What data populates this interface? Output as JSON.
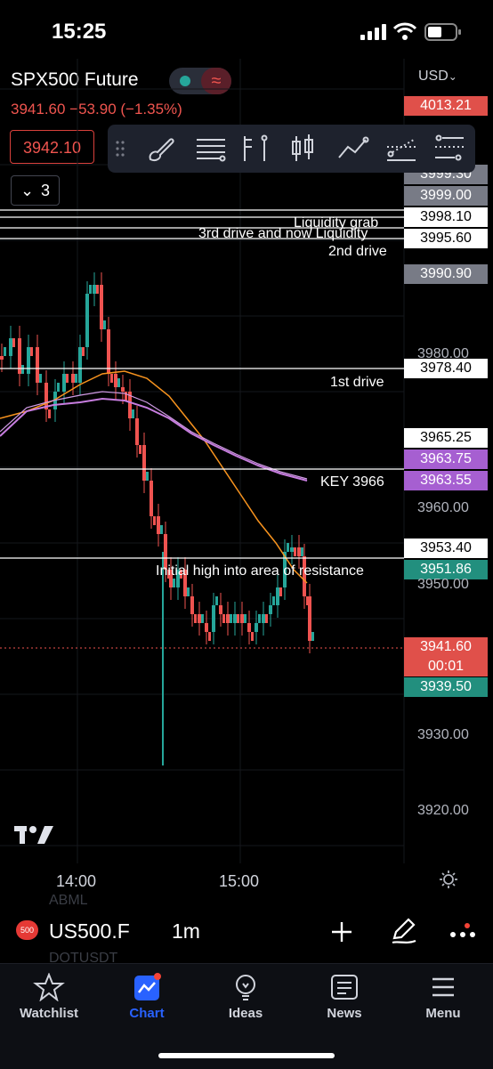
{
  "status_bar": {
    "time": "15:25"
  },
  "header": {
    "symbol": "SPX500 Future",
    "quote": "3941.60  −53.90 (−1.35%)",
    "currency": "USD",
    "current_price_box": "3942.10",
    "indicator_count": "3"
  },
  "toolbar": {
    "tools": [
      "grip-icon",
      "brush-icon",
      "lines-icon",
      "fib-icon",
      "candles-icon",
      "pattern-icon",
      "forecast-icon",
      "measure-icon"
    ]
  },
  "price_axis": {
    "labels": [
      {
        "value": "4013.21",
        "style": "red"
      },
      {
        "value": "3999.30",
        "style": "grey"
      },
      {
        "value": "3999.00",
        "style": "grey"
      },
      {
        "value": "3998.10",
        "style": "white"
      },
      {
        "value": "3995.60",
        "style": "white"
      },
      {
        "value": "3990.90",
        "style": "grey"
      },
      {
        "value": "3978.40",
        "style": "white"
      },
      {
        "value": "3965.25",
        "style": "white"
      },
      {
        "value": "3963.75",
        "style": "purple"
      },
      {
        "value": "3963.55",
        "style": "purple"
      },
      {
        "value": "3953.40",
        "style": "white"
      },
      {
        "value": "3951.86",
        "style": "teal"
      },
      {
        "value": "3941.60",
        "style": "red"
      },
      {
        "value": "00:01",
        "style": "red"
      },
      {
        "value": "3939.50",
        "style": "teal"
      }
    ],
    "ticks": [
      "3980.00",
      "3960.00",
      "3950.00",
      "3930.00",
      "3920.00"
    ]
  },
  "annotations": {
    "liquidity_grab": "Liquidity grab",
    "third_drive": "3rd drive and now Liquidity",
    "second_drive": "2nd drive",
    "first_drive": "1st drive",
    "key": "KEY 3966",
    "initial_high": "Initial high into area of resistance"
  },
  "time_axis": {
    "t1": "14:00",
    "t2": "15:00"
  },
  "symbol_bar": {
    "badge": "500",
    "symbol": "US500.F",
    "timeframe": "1m",
    "ghost_top": "ABML",
    "ghost_bottom": "DOTUSDT"
  },
  "tabs": [
    {
      "label": "Watchlist",
      "icon": "star-icon"
    },
    {
      "label": "Chart",
      "icon": "chart-icon"
    },
    {
      "label": "Ideas",
      "icon": "lightbulb-icon"
    },
    {
      "label": "News",
      "icon": "news-icon"
    },
    {
      "label": "Menu",
      "icon": "menu-icon"
    }
  ],
  "colors": {
    "up": "#26a69a",
    "down": "#ef5350",
    "accent": "#2962ff",
    "ma_orange": "#f7931e",
    "ma_purple": "#c77ddf"
  },
  "chart_data": {
    "type": "candlestick",
    "symbol": "SPX500 Future",
    "timeframe": "1m",
    "x_ticks": [
      "14:00",
      "15:00"
    ],
    "y_ticks": [
      3980,
      3960,
      3950,
      3930,
      3920
    ],
    "horizontal_levels": [
      3998.1,
      3995.6,
      3978.4,
      3966,
      3953.4
    ],
    "last_price": 3941.6
  }
}
